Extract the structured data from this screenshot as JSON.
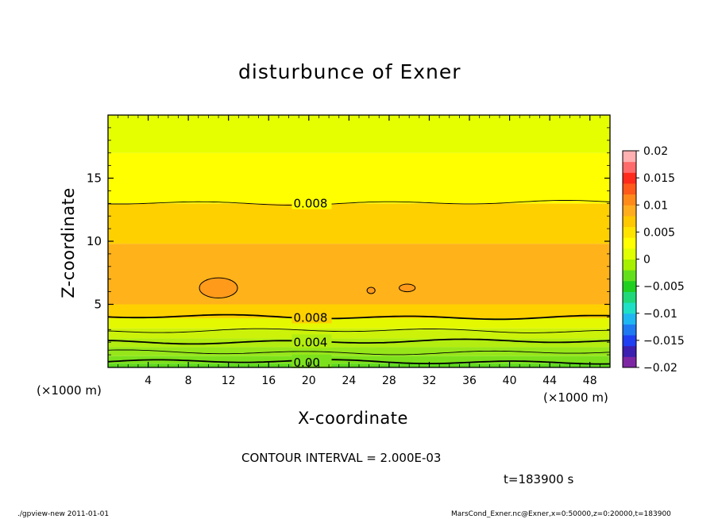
{
  "chart_data": {
    "type": "heatmap",
    "title": "disturbunce of Exner",
    "xlabel": "X-coordinate",
    "ylabel": "Z-coordinate",
    "x_unit": "(×1000 m)",
    "z_unit": "(×1000 m)",
    "xlim": [
      0,
      50
    ],
    "ylim": [
      0,
      20
    ],
    "x_ticks": [
      4,
      8,
      12,
      16,
      20,
      24,
      28,
      32,
      36,
      40,
      44,
      48
    ],
    "y_ticks": [
      5,
      10,
      15
    ],
    "colorbar": {
      "ticks": [
        "0.02",
        "0.015",
        "0.01",
        "0.005",
        "0",
        "−0.005",
        "−0.01",
        "−0.015",
        "−0.02"
      ],
      "range": [
        -0.02,
        0.02
      ],
      "colors": [
        "#7d26a3",
        "#3a1fb0",
        "#1f3ff2",
        "#1f7af2",
        "#1fb7f2",
        "#1fe0c6",
        "#1fd87a",
        "#1fd020",
        "#63e01c",
        "#a6f000",
        "#e0ff00",
        "#ffff00",
        "#ffe400",
        "#ffc800",
        "#ffac1f",
        "#ff8a1a",
        "#ff5a1a",
        "#ff2a1a",
        "#ff6a6a",
        "#ffb0b0"
      ]
    },
    "levels": [
      {
        "z": [
          0.0,
          0.3
        ],
        "value": 0.001,
        "color": "#5cd81c"
      },
      {
        "z": [
          0.3,
          0.9
        ],
        "value": 0.002,
        "color": "#7de01c"
      },
      {
        "z": [
          0.9,
          1.6
        ],
        "value": 0.003,
        "color": "#97e61a"
      },
      {
        "z": [
          1.6,
          2.3
        ],
        "value": 0.004,
        "color": "#b2ec10"
      },
      {
        "z": [
          2.3,
          3.1
        ],
        "value": 0.005,
        "color": "#ccf20a"
      },
      {
        "z": [
          3.1,
          3.9
        ],
        "value": 0.006,
        "color": "#e4f800"
      },
      {
        "z": [
          3.9,
          5.0
        ],
        "value": 0.008,
        "color": "#ffd000"
      },
      {
        "z": [
          5.0,
          9.8
        ],
        "value": 0.009,
        "color": "#ffb21a"
      },
      {
        "z": [
          9.8,
          13.0
        ],
        "value": 0.008,
        "color": "#ffd000"
      },
      {
        "z": [
          13.0,
          17.0
        ],
        "value": 0.006,
        "color": "#ffff00"
      },
      {
        "z": [
          17.0,
          20.0
        ],
        "value": 0.005,
        "color": "#e6ff00"
      }
    ],
    "contour_lines": [
      {
        "z": 0.45,
        "label": "0.00",
        "label_x": 18
      },
      {
        "z": 1.2,
        "label": "",
        "label_x": 0
      },
      {
        "z": 2.05,
        "label": "0.004",
        "label_x": 18
      },
      {
        "z": 2.9,
        "label": "",
        "label_x": 0
      },
      {
        "z": 4.0,
        "label": "0.008",
        "label_x": 18
      },
      {
        "z": 13.05,
        "label": "0.008",
        "label_x": 18
      }
    ],
    "maxima": [
      {
        "x": 11,
        "z": 6.3,
        "rx": 1.9,
        "rz": 0.8
      },
      {
        "x": 26.2,
        "z": 6.1,
        "rx": 0.4,
        "rz": 0.25
      },
      {
        "x": 29.8,
        "z": 6.3,
        "rx": 0.8,
        "rz": 0.3
      }
    ],
    "contour_interval": "CONTOUR INTERVAL = 2.000E-03",
    "time": "t=183900 s"
  },
  "footer": {
    "left": "./gpview-new   2011-01-01",
    "right": "MarsCond_Exner.nc@Exner,x=0:50000,z=0:20000,t=183900"
  }
}
